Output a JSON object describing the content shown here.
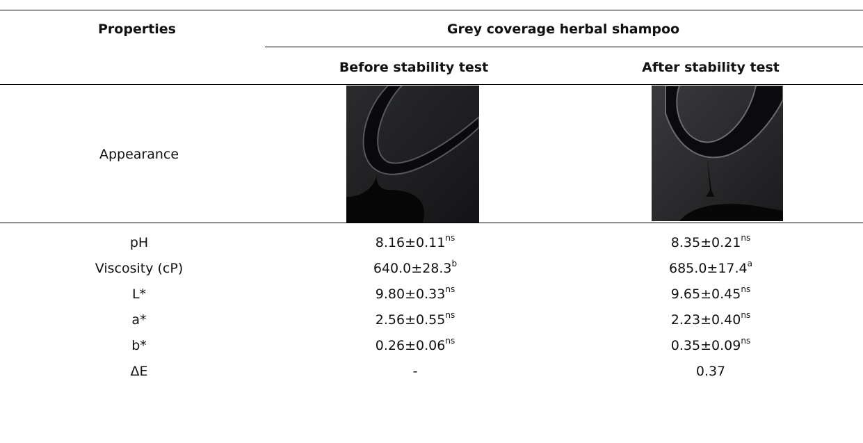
{
  "header": {
    "properties": "Properties",
    "group": "Grey coverage herbal shampoo",
    "columns": [
      "Before stability test",
      "After stability test"
    ]
  },
  "appearance": {
    "label": "Appearance"
  },
  "rows": [
    {
      "property": "pH",
      "before": {
        "value": "8.16±0.11",
        "sup": "ns"
      },
      "after": {
        "value": "8.35±0.21",
        "sup": "ns"
      }
    },
    {
      "property": "Viscosity (cP)",
      "before": {
        "value": "640.0±28.3",
        "sup": "b"
      },
      "after": {
        "value": "685.0±17.4",
        "sup": "a"
      }
    },
    {
      "property": "L*",
      "before": {
        "value": "9.80±0.33",
        "sup": "ns"
      },
      "after": {
        "value": "9.65±0.45",
        "sup": "ns"
      }
    },
    {
      "property": "a*",
      "before": {
        "value": "2.56±0.55",
        "sup": "ns"
      },
      "after": {
        "value": "2.23±0.40",
        "sup": "ns"
      }
    },
    {
      "property": "b*",
      "before": {
        "value": "0.26±0.06",
        "sup": "ns"
      },
      "after": {
        "value": "0.35±0.09",
        "sup": "ns"
      }
    },
    {
      "property": "ΔE",
      "before": {
        "value": "-"
      },
      "after": {
        "value": "0.37"
      }
    }
  ]
}
